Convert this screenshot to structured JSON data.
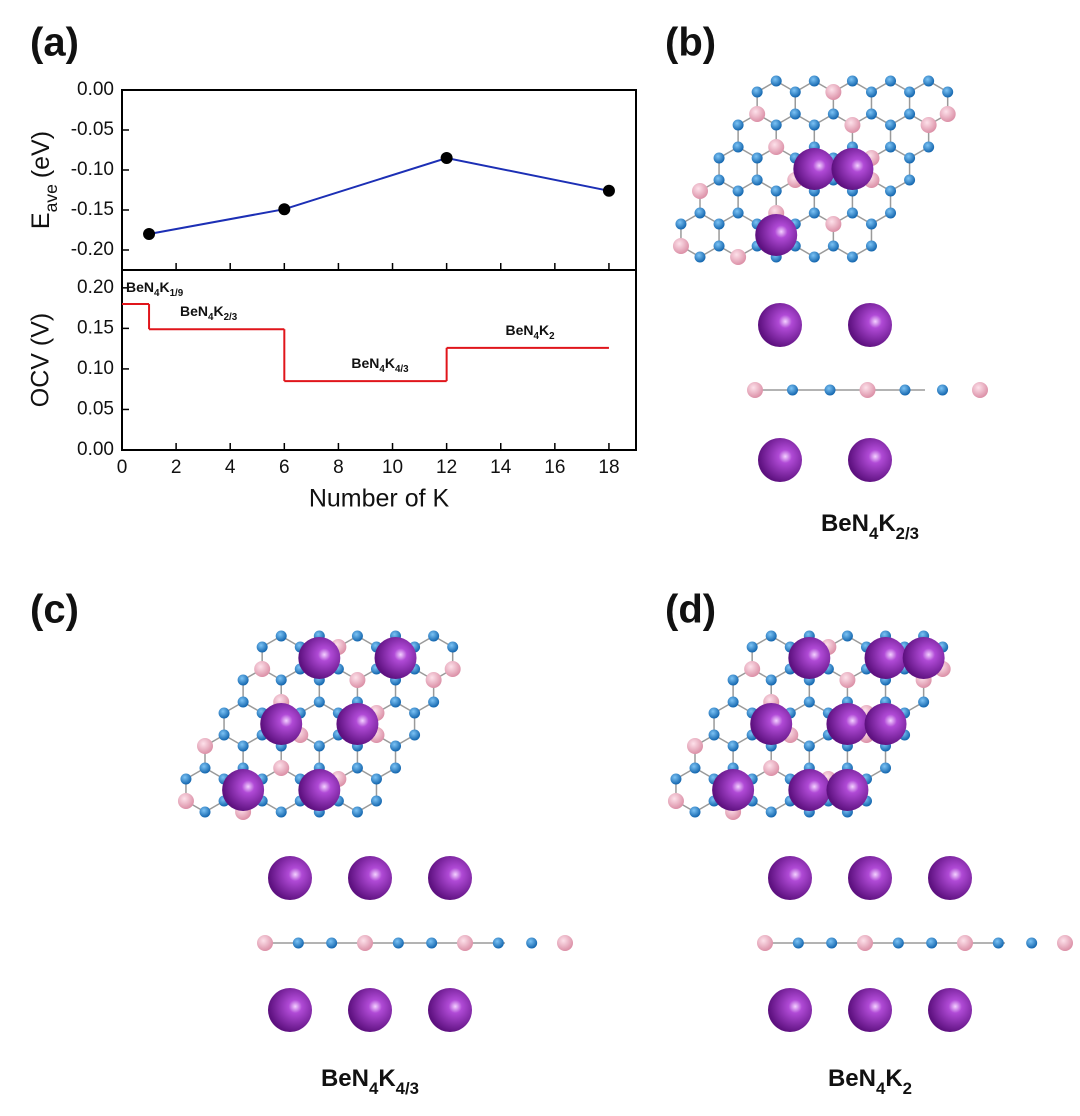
{
  "panels": {
    "a": "(a)",
    "b": "(b)",
    "c": "(c)",
    "d": "(d)"
  },
  "structures": [
    {
      "formula": [
        "BeN",
        "4",
        "K",
        "2/3"
      ]
    },
    {
      "formula": [
        "BeN",
        "4",
        "K",
        "4/3"
      ]
    },
    {
      "formula": [
        "BeN",
        "4",
        "K",
        "2"
      ]
    }
  ],
  "chart_data": [
    {
      "type": "line",
      "ylabel": [
        "E",
        "ave",
        "(eV)"
      ],
      "x": [
        1,
        6,
        12,
        18
      ],
      "series": [
        {
          "color": "#1c2fb5",
          "marker_color": "#000000",
          "values": [
            -0.18,
            -0.149,
            -0.085,
            -0.126
          ]
        }
      ],
      "xlim": [
        0,
        19
      ],
      "ylim": [
        -0.225,
        0
      ],
      "yticks": [
        {
          "value": 0,
          "label": "0.00"
        },
        {
          "value": -0.05,
          "label": "-0.05"
        },
        {
          "value": -0.1,
          "label": "-0.10"
        },
        {
          "value": -0.15,
          "label": "-0.15"
        },
        {
          "value": -0.2,
          "label": "-0.20"
        }
      ]
    },
    {
      "type": "step",
      "xlabel": "Number of K",
      "ylabel": "OCV (V)",
      "color": "#e0151b",
      "steps": [
        {
          "x0": 0,
          "x1": 1,
          "value": 0.18,
          "label": [
            "BeN",
            "4",
            "K",
            "1/9"
          ]
        },
        {
          "x0": 1,
          "x1": 6,
          "value": 0.149,
          "label": [
            "BeN",
            "4",
            "K",
            "2/3"
          ]
        },
        {
          "x0": 6,
          "x1": 12,
          "value": 0.085,
          "label": [
            "BeN",
            "4",
            "K",
            "4/3"
          ]
        },
        {
          "x0": 12,
          "x1": 18,
          "value": 0.126,
          "label": [
            "BeN",
            "4",
            "K",
            "2"
          ]
        }
      ],
      "xlim": [
        0,
        19
      ],
      "xticks": [
        0,
        2,
        4,
        6,
        8,
        10,
        12,
        14,
        16,
        18
      ],
      "ylim": [
        0,
        0.222
      ],
      "yticks": [
        {
          "value": 0,
          "label": "0.00"
        },
        {
          "value": 0.05,
          "label": "0.05"
        },
        {
          "value": 0.1,
          "label": "0.10"
        },
        {
          "value": 0.15,
          "label": "0.15"
        },
        {
          "value": 0.2,
          "label": "0.20"
        }
      ]
    }
  ]
}
